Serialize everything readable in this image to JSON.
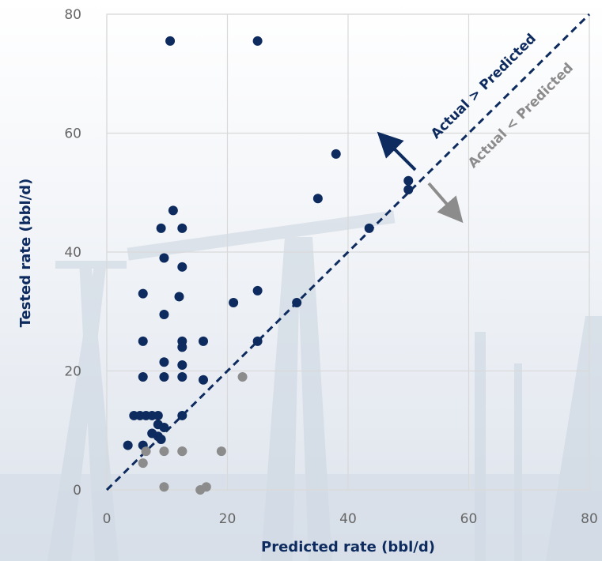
{
  "chart_data": {
    "type": "scatter",
    "title": "",
    "xlabel": "Predicted rate (bbl/d)",
    "ylabel": "Tested rate (bbl/d)",
    "xlim": [
      0,
      80
    ],
    "ylim": [
      0,
      80
    ],
    "xticks": [
      0,
      20,
      40,
      60,
      80
    ],
    "yticks": [
      0,
      20,
      40,
      60,
      80
    ],
    "grid": true,
    "legend": "none",
    "colors": {
      "above": "#0d2b5e",
      "below": "#8c8c8c",
      "grid": "#d9d9d9",
      "reference_line": "#0d2b5e"
    },
    "reference_line": {
      "from": [
        0,
        0
      ],
      "to": [
        80,
        80
      ],
      "style": "dashed"
    },
    "annotations": {
      "above": "Actual > Predicted",
      "below": "Actual < Predicted"
    },
    "series": [
      {
        "color_key": "above",
        "points": [
          [
            10.5,
            75.5
          ],
          [
            25,
            75.5
          ],
          [
            38,
            56.5
          ],
          [
            50,
            52
          ],
          [
            35,
            49
          ],
          [
            50,
            50.5
          ],
          [
            11,
            47
          ],
          [
            9,
            44
          ],
          [
            12.5,
            44
          ],
          [
            43.5,
            44
          ],
          [
            9.5,
            39
          ],
          [
            12.5,
            37.5
          ],
          [
            6,
            33
          ],
          [
            12,
            32.5
          ],
          [
            25,
            33.5
          ],
          [
            21,
            31.5
          ],
          [
            31.5,
            31.5
          ],
          [
            9.5,
            29.5
          ],
          [
            6,
            25
          ],
          [
            12.5,
            25
          ],
          [
            16,
            25
          ],
          [
            25,
            25
          ],
          [
            12.5,
            24
          ],
          [
            9.5,
            21.5
          ],
          [
            12.5,
            21
          ],
          [
            6,
            19
          ],
          [
            9.5,
            19
          ],
          [
            12.5,
            19
          ],
          [
            16,
            18.5
          ],
          [
            4.5,
            12.5
          ],
          [
            5.5,
            12.5
          ],
          [
            6.5,
            12.5
          ],
          [
            7.5,
            12.5
          ],
          [
            8.5,
            12.5
          ],
          [
            12.5,
            12.5
          ],
          [
            8.5,
            11
          ],
          [
            9.5,
            10.5
          ],
          [
            7.5,
            9.5
          ],
          [
            8.5,
            9
          ],
          [
            9,
            8.5
          ],
          [
            3.5,
            7.5
          ],
          [
            6,
            7.5
          ]
        ]
      },
      {
        "color_key": "below",
        "points": [
          [
            22.5,
            19
          ],
          [
            6.5,
            6.5
          ],
          [
            9.5,
            6.5
          ],
          [
            12.5,
            6.5
          ],
          [
            19,
            6.5
          ],
          [
            12.5,
            6.5
          ],
          [
            6,
            4.5
          ],
          [
            9.5,
            0.5
          ],
          [
            16.5,
            0.5
          ],
          [
            15.5,
            0
          ]
        ]
      }
    ]
  }
}
